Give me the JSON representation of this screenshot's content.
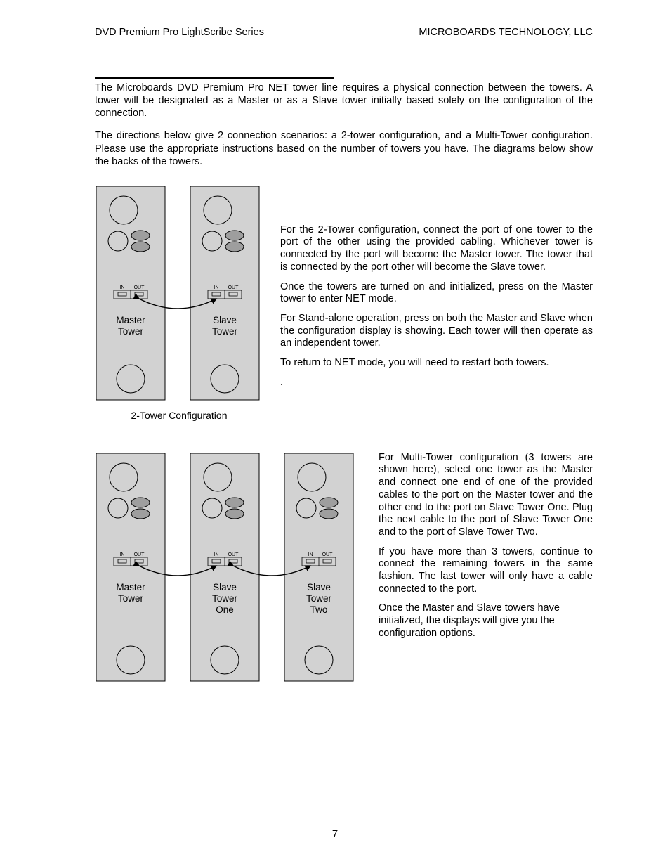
{
  "header": {
    "left": "DVD Premium Pro LightScribe Series",
    "right": "MICROBOARDS TECHNOLOGY, LLC"
  },
  "intro": {
    "p1": "The Microboards DVD Premium Pro NET tower line requires a physical connection between the towers.  A tower will be designated as a Master or as a Slave tower initially based solely on the configuration of the connection.",
    "p2": "The directions below give 2 connection scenarios: a 2-tower configuration, and a Multi-Tower configuration.  Please use the appropriate instructions based on the number of towers you have.  The diagrams below show the backs of the towers."
  },
  "two_tower": {
    "p1": "For the 2-Tower configuration, connect the         port of one tower to the       port of the other using the provided cabling.  Whichever tower is connected by the          port will become the Master tower.  The tower that is connected by the      port other will become the Slave tower.",
    "p2": "Once the towers are turned on and initialized, press         on the Master tower to enter NET mode.",
    "p3": "For Stand-alone operation, press          on both the Master and Slave when the configuration display is showing.  Each tower will then operate as an independent tower.",
    "p4": "To return to NET mode, you will need to restart both towers.",
    "p5": ".",
    "caption": "2-Tower Configuration"
  },
  "multi_tower": {
    "p1": "For Multi-Tower configuration (3 towers are shown here), select one tower as the Master and connect one end of one of the provided cables to the           port on the Master tower and the other end to the        port on Slave Tower One.  Plug the next cable to the           port of Slave Tower One and to the        port of Slave Tower Two.",
    "p2": "If you have more than 3 towers, continue to connect the remaining towers in the same fashion.  The last tower will only have a cable connected to the      port.",
    "p3": "Once the Master and Slave towers have initialized, the displays will give you the configuration options."
  },
  "diagram": {
    "tower_bg": "#d2d2d2",
    "stroke": "#000000",
    "cable_color": "#000000",
    "port_label_in": "IN",
    "port_label_out": "OUT",
    "labels_2t": {
      "t1": [
        "Master",
        "Tower"
      ],
      "t2": [
        "Slave",
        "Tower"
      ]
    },
    "labels_mt": {
      "t1": [
        "Master",
        "Tower"
      ],
      "t2": [
        "Slave",
        "Tower",
        "One"
      ],
      "t3": [
        "Slave",
        "Tower",
        "Two"
      ]
    },
    "big_circle_r": 20,
    "small_circle_r": 14,
    "oval_rx": 13,
    "oval_ry": 7
  },
  "page_number": "7"
}
